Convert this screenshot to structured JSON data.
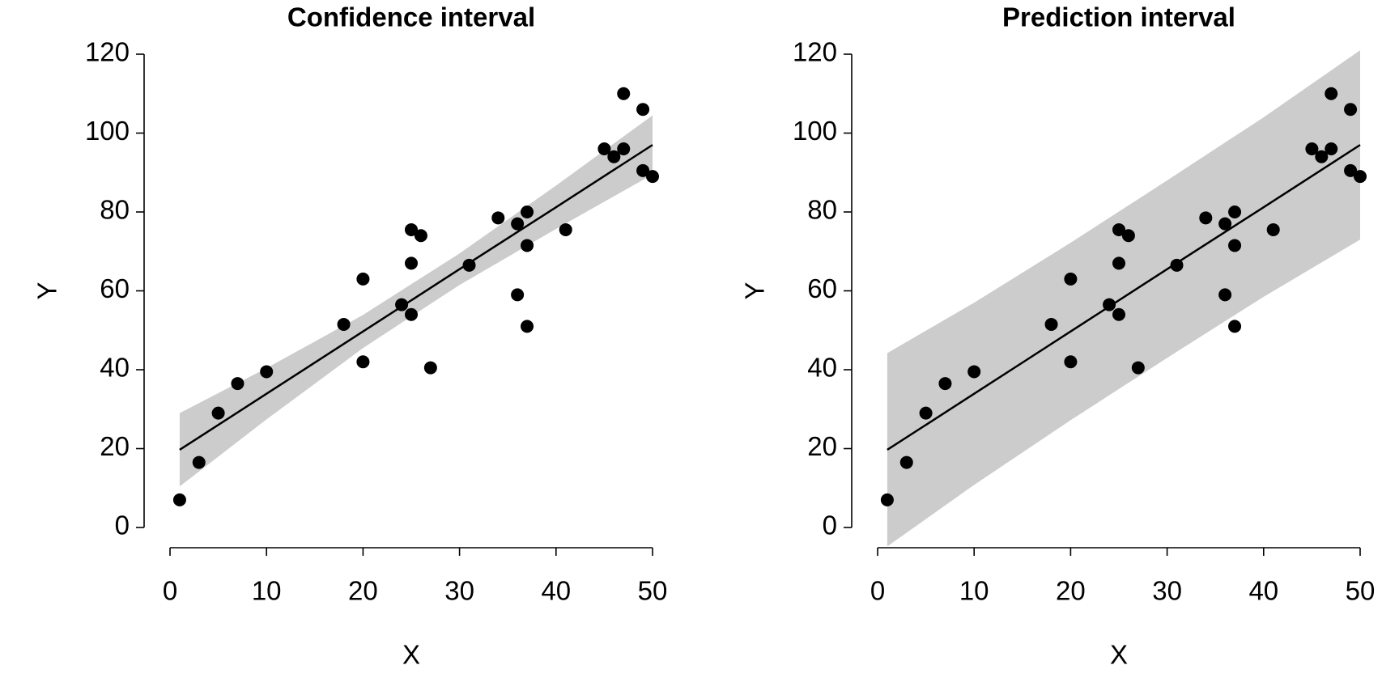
{
  "chart_data": [
    {
      "type": "scatter",
      "title": "Confidence interval",
      "x_label": "X",
      "y_label": "Y",
      "x": [
        1,
        3,
        5,
        7,
        10,
        18,
        20,
        20,
        24,
        25,
        25,
        25,
        26,
        27,
        31,
        34,
        36,
        36,
        37,
        37,
        37,
        41,
        45,
        46,
        47,
        47,
        49,
        49,
        50
      ],
      "values": [
        7,
        16.5,
        29,
        36.5,
        39.5,
        51.5,
        63,
        42,
        56.5,
        75.5,
        67,
        54,
        74,
        40.5,
        66.5,
        78.5,
        77,
        59,
        80,
        71.5,
        51,
        75.5,
        96,
        94,
        110,
        96,
        106,
        90.5,
        89
      ],
      "color": "#000000",
      "fit": {
        "x": [
          1,
          10,
          20,
          30,
          40,
          50
        ],
        "values": [
          19.7,
          33.9,
          49.7,
          65.5,
          81.2,
          97
        ],
        "color": "#000000"
      },
      "band": {
        "x": [
          1,
          10,
          20,
          30,
          40,
          50
        ],
        "lower": [
          10.4,
          27.4,
          45.5,
          61.5,
          75.7,
          89.5
        ],
        "upper": [
          29,
          40.4,
          53.9,
          69.5,
          86.7,
          104.5
        ],
        "color": "#cccccc"
      },
      "xlim": [
        0,
        50
      ],
      "xticks": [
        0,
        10,
        20,
        30,
        40,
        50
      ],
      "ylim": [
        0,
        120
      ],
      "yticks": [
        0,
        20,
        40,
        60,
        80,
        100,
        120
      ],
      "grid": false
    },
    {
      "type": "scatter",
      "title": "Prediction interval",
      "x_label": "X",
      "y_label": "Y",
      "x": [
        1,
        3,
        5,
        7,
        10,
        18,
        20,
        20,
        24,
        25,
        25,
        25,
        26,
        27,
        31,
        34,
        36,
        36,
        37,
        37,
        37,
        41,
        45,
        46,
        47,
        47,
        49,
        49,
        50
      ],
      "values": [
        7,
        16.5,
        29,
        36.5,
        39.5,
        51.5,
        63,
        42,
        56.5,
        75.5,
        67,
        54,
        74,
        40.5,
        66.5,
        78.5,
        77,
        59,
        80,
        71.5,
        51,
        75.5,
        96,
        94,
        110,
        96,
        106,
        90.5,
        89
      ],
      "color": "#000000",
      "fit": {
        "x": [
          1,
          10,
          20,
          30,
          40,
          50
        ],
        "values": [
          19.7,
          33.9,
          49.7,
          65.5,
          81.2,
          97
        ],
        "color": "#000000"
      },
      "band": {
        "x": [
          1,
          10,
          20,
          30,
          40,
          50
        ],
        "lower": [
          -4.8,
          10.8,
          27.2,
          43,
          58.5,
          73
        ],
        "upper": [
          44.2,
          57,
          72.2,
          88,
          104,
          121
        ],
        "color": "#cccccc"
      },
      "xlim": [
        0,
        50
      ],
      "xticks": [
        0,
        10,
        20,
        30,
        40,
        50
      ],
      "ylim": [
        0,
        120
      ],
      "yticks": [
        0,
        20,
        40,
        60,
        80,
        100,
        120
      ],
      "grid": false
    }
  ]
}
